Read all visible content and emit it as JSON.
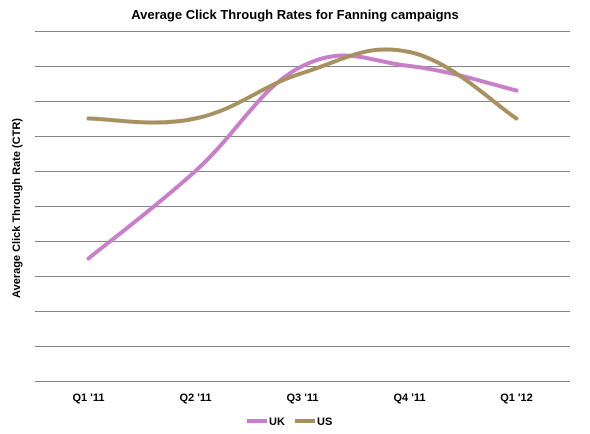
{
  "chart_data": {
    "type": "line",
    "title": "Average Click Through Rates for Fanning campaigns",
    "xlabel": "",
    "ylabel": "Average Click Through Rate (CTR)",
    "categories": [
      "Q1 '11",
      "Q2 '11",
      "Q3 '11",
      "Q4 '11",
      "Q1 '12"
    ],
    "ylim": [
      0,
      10
    ],
    "grid": true,
    "smooth": true,
    "y_tick_labels_shown": false,
    "legend_position": "bottom",
    "series": [
      {
        "name": "UK",
        "color": "#c77fc8",
        "values": [
          3.5,
          6.0,
          9.0,
          9.0,
          8.3
        ]
      },
      {
        "name": "US",
        "color": "#a89161",
        "values": [
          7.5,
          7.5,
          8.8,
          9.4,
          7.5
        ]
      }
    ]
  }
}
